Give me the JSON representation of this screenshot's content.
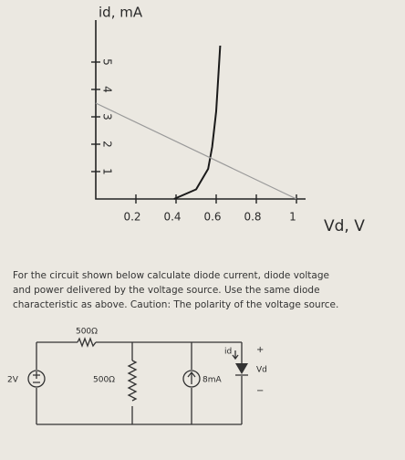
{
  "chart_data": {
    "type": "line",
    "x_label": "Vd, V",
    "y_label": "id, mA",
    "xlim": [
      0,
      1.1
    ],
    "ylim": [
      0,
      6.5
    ],
    "xticks": [
      0.2,
      0.4,
      0.6,
      0.8,
      1
    ],
    "yticks": [
      1,
      2,
      3,
      4,
      5
    ],
    "series": [
      {
        "color": "#1a1a1a",
        "x": [
          0.39,
          0.5,
          0.56,
          0.58,
          0.6,
          0.62
        ],
        "values": [
          0,
          0.35,
          1.1,
          1.9,
          3.2,
          5.6
        ]
      },
      {
        "color": "#9a9a9a",
        "x": [
          0,
          1
        ],
        "values": [
          3.5,
          0
        ]
      }
    ]
  },
  "problem": {
    "lines": [
      "For the circuit shown below calculate diode current, diode voltage",
      "and power delivered by the voltage source. Use the same diode",
      "characteristic as above. Caution: The polarity of the voltage source."
    ]
  },
  "circuit": {
    "series_resistor": "500Ω",
    "source": "2V",
    "shunt_resistor": "500Ω",
    "current_source": "8mA",
    "diode_current": "id",
    "plus": "+",
    "diode_voltage": "Vd",
    "minus": "−"
  }
}
